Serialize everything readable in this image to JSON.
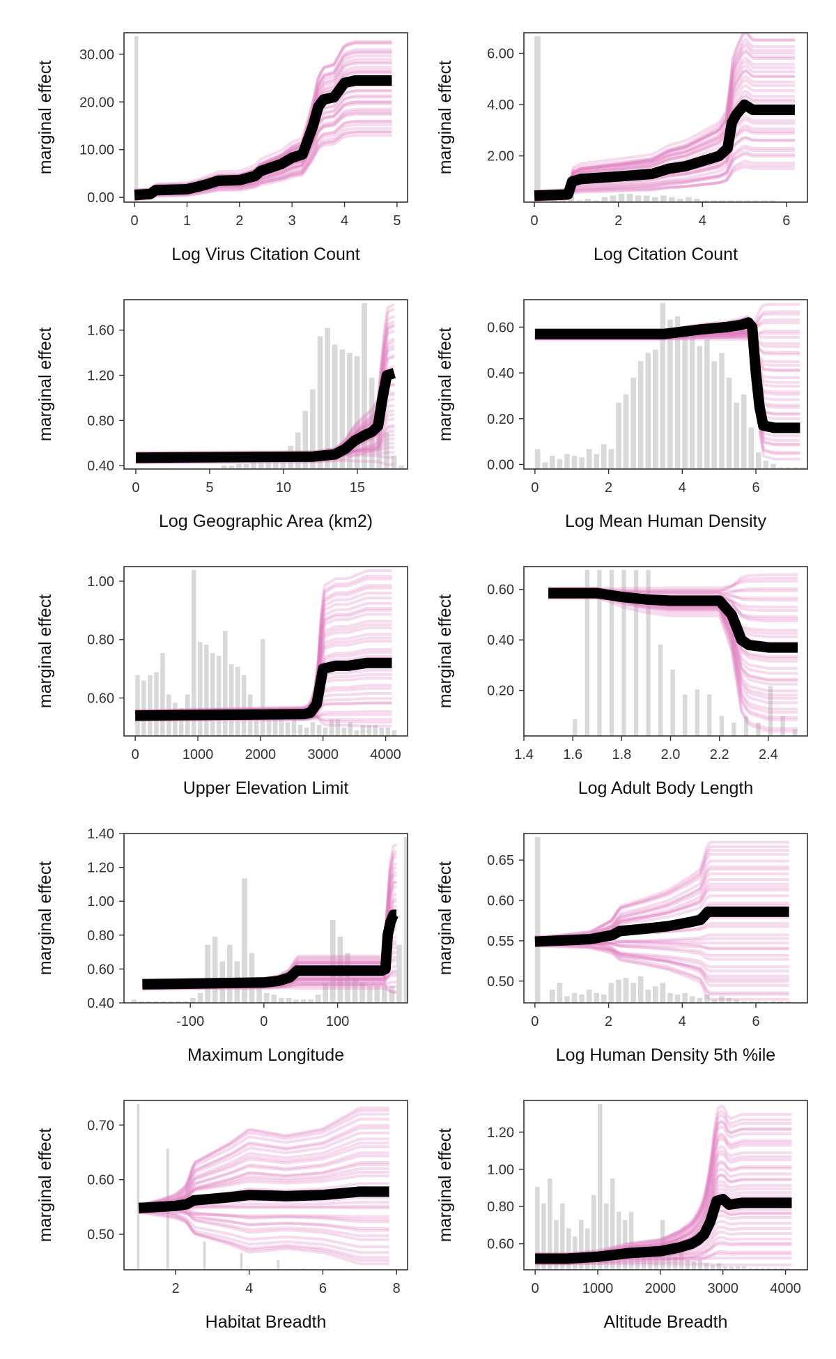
{
  "style": {
    "ice_color": "#e07ac0",
    "pdp_color": "#000000",
    "hist_color": "#d9d9d9",
    "frame_color": "#333333"
  },
  "chart_data": [
    {
      "type": "line",
      "xlabel": "Log Virus Citation Count",
      "ylabel": "marginal effect",
      "xlim": [
        -0.2,
        5.2
      ],
      "ylim": [
        -1,
        34.5
      ],
      "xticks": [
        0,
        1,
        2,
        3,
        4,
        5
      ],
      "xtick_labels": [
        "0",
        "1",
        "2",
        "3",
        "4",
        "5"
      ],
      "yticks": [
        0,
        10,
        20,
        30
      ],
      "ytick_labels": [
        "0.00",
        "10.00",
        "20.00",
        "30.00"
      ],
      "pdp": [
        [
          0,
          0.5
        ],
        [
          0.3,
          0.7
        ],
        [
          0.4,
          1.5
        ],
        [
          1,
          1.7
        ],
        [
          1.2,
          2.2
        ],
        [
          1.4,
          2.8
        ],
        [
          1.6,
          3.5
        ],
        [
          2,
          3.6
        ],
        [
          2.3,
          4.5
        ],
        [
          2.4,
          5.5
        ],
        [
          2.8,
          7
        ],
        [
          3.0,
          8.3
        ],
        [
          3.2,
          9.0
        ],
        [
          3.3,
          12
        ],
        [
          3.4,
          15
        ],
        [
          3.5,
          19
        ],
        [
          3.6,
          20.5
        ],
        [
          3.8,
          21
        ],
        [
          4.0,
          24
        ],
        [
          4.2,
          24.5
        ],
        [
          4.9,
          24.5
        ]
      ],
      "ice_end_range": [
        13,
        33
      ],
      "hist": {
        "start": 0,
        "width": 0.1,
        "counts": [
          1,
          0,
          0,
          0,
          0,
          0,
          0,
          0,
          0,
          0,
          0,
          0,
          0,
          0,
          0,
          0,
          0,
          0,
          0,
          0,
          0,
          0,
          0,
          0,
          0,
          0,
          0,
          0,
          0,
          0,
          0,
          0,
          0,
          0,
          0,
          0,
          0,
          0,
          0,
          0,
          0,
          0,
          0,
          0,
          0,
          0,
          0,
          0,
          0,
          0
        ],
        "max_frac": 0.98
      }
    },
    {
      "type": "line",
      "xlabel": "Log Citation Count",
      "ylabel": "marginal effect",
      "xlim": [
        -0.25,
        6.5
      ],
      "ylim": [
        0.2,
        6.8
      ],
      "xticks": [
        0,
        2,
        4,
        6
      ],
      "xtick_labels": [
        "0",
        "2",
        "4",
        "6"
      ],
      "yticks": [
        2,
        4,
        6
      ],
      "ytick_labels": [
        "2.00",
        "4.00",
        "6.00"
      ],
      "pdp": [
        [
          0,
          0.45
        ],
        [
          0.8,
          0.5
        ],
        [
          0.9,
          1.0
        ],
        [
          1.1,
          1.1
        ],
        [
          2,
          1.2
        ],
        [
          2.8,
          1.3
        ],
        [
          3.2,
          1.5
        ],
        [
          3.6,
          1.6
        ],
        [
          4,
          1.8
        ],
        [
          4.4,
          2.0
        ],
        [
          4.6,
          2.3
        ],
        [
          4.7,
          3.3
        ],
        [
          4.8,
          3.6
        ],
        [
          5.0,
          4.0
        ],
        [
          5.2,
          3.8
        ],
        [
          6.2,
          3.8
        ]
      ],
      "ice_end_range": [
        1.5,
        6.6
      ],
      "hist": {
        "start": 0,
        "width": 0.2,
        "counts": [
          100,
          0,
          4,
          1,
          5,
          1,
          2,
          1,
          3,
          4,
          5,
          5,
          4,
          4,
          3,
          4,
          3,
          2,
          3,
          2,
          1,
          1,
          1,
          1,
          1,
          1,
          1,
          1,
          1,
          0,
          0
        ],
        "max_frac": 0.98
      }
    },
    {
      "type": "line",
      "xlabel": "Log Geographic Area (km2)",
      "ylabel": "marginal effect",
      "xlim": [
        -0.8,
        18.4
      ],
      "ylim": [
        0.37,
        1.87
      ],
      "xticks": [
        0,
        5,
        10,
        15
      ],
      "xtick_labels": [
        "0",
        "5",
        "10",
        "15"
      ],
      "yticks": [
        0.4,
        0.8,
        1.2,
        1.6
      ],
      "ytick_labels": [
        "0.40",
        "0.80",
        "1.20",
        "1.60"
      ],
      "pdp": [
        [
          0,
          0.47
        ],
        [
          12,
          0.48
        ],
        [
          13.5,
          0.5
        ],
        [
          14.2,
          0.55
        ],
        [
          14.8,
          0.62
        ],
        [
          15.5,
          0.67
        ],
        [
          16,
          0.7
        ],
        [
          16.4,
          0.75
        ],
        [
          16.7,
          1.0
        ],
        [
          17,
          1.2
        ],
        [
          17.5,
          1.22
        ]
      ],
      "ice_end_range": [
        0.42,
        1.82
      ],
      "hist": {
        "start": 5.8,
        "width": 0.5,
        "counts": [
          2,
          2,
          3,
          3,
          4,
          5,
          6,
          8,
          10,
          14,
          22,
          35,
          48,
          80,
          85,
          75,
          72,
          70,
          68,
          100,
          55,
          40,
          22,
          8,
          2
        ],
        "max_frac": 0.98
      }
    },
    {
      "type": "line",
      "xlabel": "Log Mean Human Density",
      "ylabel": "marginal effect",
      "xlim": [
        -0.3,
        7.4
      ],
      "ylim": [
        -0.02,
        0.72
      ],
      "xticks": [
        0,
        2,
        4,
        6
      ],
      "xtick_labels": [
        "0",
        "2",
        "4",
        "6"
      ],
      "yticks": [
        0,
        0.2,
        0.4,
        0.6
      ],
      "ytick_labels": [
        "0.00",
        "0.20",
        "0.40",
        "0.60"
      ],
      "pdp": [
        [
          0,
          0.57
        ],
        [
          3.5,
          0.57
        ],
        [
          4,
          0.58
        ],
        [
          4.5,
          0.59
        ],
        [
          5.2,
          0.6
        ],
        [
          5.6,
          0.61
        ],
        [
          5.8,
          0.62
        ],
        [
          5.9,
          0.6
        ],
        [
          6,
          0.4
        ],
        [
          6.1,
          0.25
        ],
        [
          6.2,
          0.17
        ],
        [
          6.5,
          0.16
        ],
        [
          7.2,
          0.16
        ]
      ],
      "ice_end_range": [
        0.02,
        0.69
      ],
      "hist": {
        "start": 0,
        "width": 0.2,
        "counts": [
          12,
          4,
          8,
          6,
          9,
          8,
          7,
          12,
          9,
          15,
          12,
          40,
          45,
          55,
          65,
          70,
          72,
          100,
          90,
          92,
          80,
          85,
          74,
          78,
          65,
          70,
          55,
          40,
          45,
          25,
          10,
          5,
          3,
          1,
          1,
          1,
          1
        ],
        "max_frac": 0.98
      }
    },
    {
      "type": "line",
      "xlabel": "Upper Elevation Limit",
      "ylabel": "marginal effect",
      "xlim": [
        -180,
        4350
      ],
      "ylim": [
        0.47,
        1.05
      ],
      "xticks": [
        0,
        1000,
        2000,
        3000,
        4000
      ],
      "xtick_labels": [
        "0",
        "1000",
        "2000",
        "3000",
        "4000"
      ],
      "yticks": [
        0.6,
        0.8,
        1.0
      ],
      "ytick_labels": [
        "0.60",
        "0.80",
        "1.00"
      ],
      "pdp": [
        [
          0,
          0.54
        ],
        [
          2700,
          0.545
        ],
        [
          2800,
          0.55
        ],
        [
          2900,
          0.58
        ],
        [
          3000,
          0.7
        ],
        [
          3200,
          0.71
        ],
        [
          3400,
          0.71
        ],
        [
          3700,
          0.72
        ],
        [
          4100,
          0.72
        ]
      ],
      "ice_end_range": [
        0.5,
        1.03
      ],
      "hist": {
        "start": 0,
        "width": 100,
        "counts": [
          22,
          20,
          22,
          23,
          30,
          15,
          12,
          10,
          15,
          60,
          34,
          33,
          30,
          29,
          38,
          26,
          25,
          22,
          15,
          10,
          35,
          10,
          8,
          6,
          5,
          6,
          4,
          3,
          5,
          4,
          3,
          6,
          6,
          3,
          5,
          2,
          4,
          4,
          4,
          3,
          3,
          2
        ],
        "max_frac": 0.98
      }
    },
    {
      "type": "line",
      "xlabel": "Log Adult Body Length",
      "ylabel": "marginal effect",
      "xlim": [
        1.4,
        2.56
      ],
      "ylim": [
        0.02,
        0.69
      ],
      "xticks": [
        1.4,
        1.6,
        1.8,
        2.0,
        2.2,
        2.4
      ],
      "xtick_labels": [
        "1.4",
        "1.6",
        "1.8",
        "2.0",
        "2.2",
        "2.4"
      ],
      "yticks": [
        0.2,
        0.4,
        0.6
      ],
      "ytick_labels": [
        "0.20",
        "0.40",
        "0.60"
      ],
      "pdp": [
        [
          1.5,
          0.585
        ],
        [
          1.7,
          0.585
        ],
        [
          1.8,
          0.57
        ],
        [
          1.9,
          0.56
        ],
        [
          2.0,
          0.555
        ],
        [
          2.2,
          0.555
        ],
        [
          2.25,
          0.5
        ],
        [
          2.27,
          0.45
        ],
        [
          2.29,
          0.4
        ],
        [
          2.32,
          0.38
        ],
        [
          2.4,
          0.37
        ],
        [
          2.52,
          0.37
        ]
      ],
      "ice_end_range": [
        0.04,
        0.66
      ],
      "hist": {
        "start": 1.6,
        "width": 0.025,
        "counts": [
          10,
          0,
          100,
          0,
          100,
          0,
          100,
          0,
          100,
          0,
          100,
          0,
          100,
          0,
          55,
          0,
          40,
          0,
          25,
          0,
          28,
          0,
          25,
          0,
          12,
          0,
          8,
          0,
          12,
          0,
          8,
          0,
          30,
          0,
          12,
          0,
          4
        ],
        "max_frac": 0.98
      }
    },
    {
      "type": "line",
      "xlabel": "Maximum Longitude",
      "ylabel": "marginal effect",
      "xlim": [
        -190,
        195
      ],
      "ylim": [
        0.4,
        1.4
      ],
      "xticks": [
        -100,
        0,
        100
      ],
      "xtick_labels": [
        "-100",
        "0",
        "100"
      ],
      "yticks": [
        0.4,
        0.6,
        0.8,
        1.0,
        1.2,
        1.4
      ],
      "ytick_labels": [
        "0.40",
        "0.60",
        "0.80",
        "1.00",
        "1.20",
        "1.40"
      ],
      "pdp": [
        [
          -165,
          0.51
        ],
        [
          0,
          0.52
        ],
        [
          20,
          0.53
        ],
        [
          35,
          0.55
        ],
        [
          45,
          0.59
        ],
        [
          100,
          0.59
        ],
        [
          160,
          0.59
        ],
        [
          165,
          0.6
        ],
        [
          168,
          0.8
        ],
        [
          172,
          0.88
        ],
        [
          176,
          0.92
        ],
        [
          180,
          0.92
        ]
      ],
      "ice_end_range": [
        0.45,
        1.33
      ],
      "hist": {
        "start": -180,
        "width": 10,
        "counts": [
          2,
          1,
          1,
          1,
          1,
          1,
          1,
          1,
          3,
          6,
          35,
          40,
          25,
          35,
          25,
          75,
          30,
          10,
          6,
          5,
          3,
          3,
          2,
          2,
          2,
          5,
          12,
          50,
          40,
          30,
          15,
          12,
          10,
          10,
          10,
          10,
          35,
          100,
          45,
          35,
          25,
          20
        ],
        "max_frac": 0.98
      }
    },
    {
      "type": "line",
      "xlabel": "Log Human Density 5th %ile",
      "ylabel": "marginal effect",
      "xlim": [
        -0.3,
        7.4
      ],
      "ylim": [
        0.473,
        0.683
      ],
      "xticks": [
        0,
        2,
        4,
        6
      ],
      "xtick_labels": [
        "0",
        "2",
        "4",
        "6"
      ],
      "yticks": [
        0.5,
        0.55,
        0.6,
        0.65
      ],
      "ytick_labels": [
        "0.50",
        "0.55",
        "0.60",
        "0.65"
      ],
      "pdp": [
        [
          0,
          0.549
        ],
        [
          1.5,
          0.552
        ],
        [
          2.1,
          0.557
        ],
        [
          2.3,
          0.562
        ],
        [
          3,
          0.565
        ],
        [
          3.6,
          0.568
        ],
        [
          4.2,
          0.573
        ],
        [
          4.5,
          0.576
        ],
        [
          4.7,
          0.586
        ],
        [
          5,
          0.586
        ],
        [
          6.9,
          0.586
        ]
      ],
      "ice_end_range": [
        0.475,
        0.672
      ],
      "hist": {
        "start": 0,
        "width": 0.2,
        "counts": [
          100,
          0,
          8,
          12,
          4,
          6,
          5,
          8,
          6,
          5,
          12,
          14,
          15,
          12,
          16,
          8,
          10,
          12,
          6,
          5,
          6,
          4,
          3,
          5,
          2,
          4,
          3,
          2,
          1,
          1,
          1,
          1,
          1,
          1,
          1
        ],
        "max_frac": 0.98
      }
    },
    {
      "type": "line",
      "xlabel": "Habitat Breadth",
      "ylabel": "marginal effect",
      "xlim": [
        0.6,
        8.3
      ],
      "ylim": [
        0.435,
        0.745
      ],
      "xticks": [
        2,
        4,
        6,
        8
      ],
      "xtick_labels": [
        "2",
        "4",
        "6",
        "8"
      ],
      "yticks": [
        0.5,
        0.6,
        0.7
      ],
      "ytick_labels": [
        "0.50",
        "0.60",
        "0.70"
      ],
      "pdp": [
        [
          1,
          0.548
        ],
        [
          2,
          0.552
        ],
        [
          2.3,
          0.555
        ],
        [
          2.5,
          0.562
        ],
        [
          3,
          0.565
        ],
        [
          3.5,
          0.568
        ],
        [
          4,
          0.572
        ],
        [
          5,
          0.57
        ],
        [
          6,
          0.572
        ],
        [
          7,
          0.578
        ],
        [
          7.8,
          0.578
        ]
      ],
      "ice_end_range": [
        0.445,
        0.735
      ],
      "hist": {
        "start": 0.95,
        "width": 0.1,
        "counts": [
          100,
          0,
          0,
          0,
          0,
          0,
          0,
          0,
          73,
          0,
          0,
          0,
          0,
          0,
          0,
          0,
          0,
          0,
          17,
          0,
          0,
          0,
          0,
          0,
          0,
          0,
          0,
          0,
          10,
          0,
          0,
          0,
          0,
          0,
          0,
          0,
          0,
          0,
          6,
          0,
          0,
          0,
          0,
          0,
          0,
          1
        ],
        "max_frac": 0.98
      }
    },
    {
      "type": "line",
      "xlabel": "Altitude Breadth",
      "ylabel": "marginal effect",
      "xlim": [
        -180,
        4350
      ],
      "ylim": [
        0.46,
        1.37
      ],
      "xticks": [
        0,
        1000,
        2000,
        3000,
        4000
      ],
      "xtick_labels": [
        "0",
        "1000",
        "2000",
        "3000",
        "4000"
      ],
      "yticks": [
        0.6,
        0.8,
        1.0,
        1.2
      ],
      "ytick_labels": [
        "0.60",
        "0.80",
        "1.00",
        "1.20"
      ],
      "pdp": [
        [
          0,
          0.52
        ],
        [
          500,
          0.52
        ],
        [
          1000,
          0.53
        ],
        [
          1500,
          0.55
        ],
        [
          2000,
          0.56
        ],
        [
          2300,
          0.58
        ],
        [
          2500,
          0.6
        ],
        [
          2600,
          0.62
        ],
        [
          2700,
          0.65
        ],
        [
          2800,
          0.72
        ],
        [
          2900,
          0.83
        ],
        [
          3000,
          0.84
        ],
        [
          3100,
          0.81
        ],
        [
          3300,
          0.82
        ],
        [
          4100,
          0.82
        ]
      ],
      "ice_end_range": [
        0.5,
        1.3
      ],
      "hist": {
        "start": 0,
        "width": 100,
        "counts": [
          50,
          40,
          55,
          30,
          40,
          25,
          20,
          30,
          25,
          45,
          100,
          40,
          55,
          35,
          30,
          35,
          15,
          12,
          10,
          15,
          30,
          10,
          8,
          12,
          6,
          5,
          6,
          4,
          3,
          4,
          2,
          2,
          2,
          2,
          1,
          1,
          1,
          1,
          1,
          1,
          1
        ],
        "max_frac": 0.98
      }
    }
  ]
}
